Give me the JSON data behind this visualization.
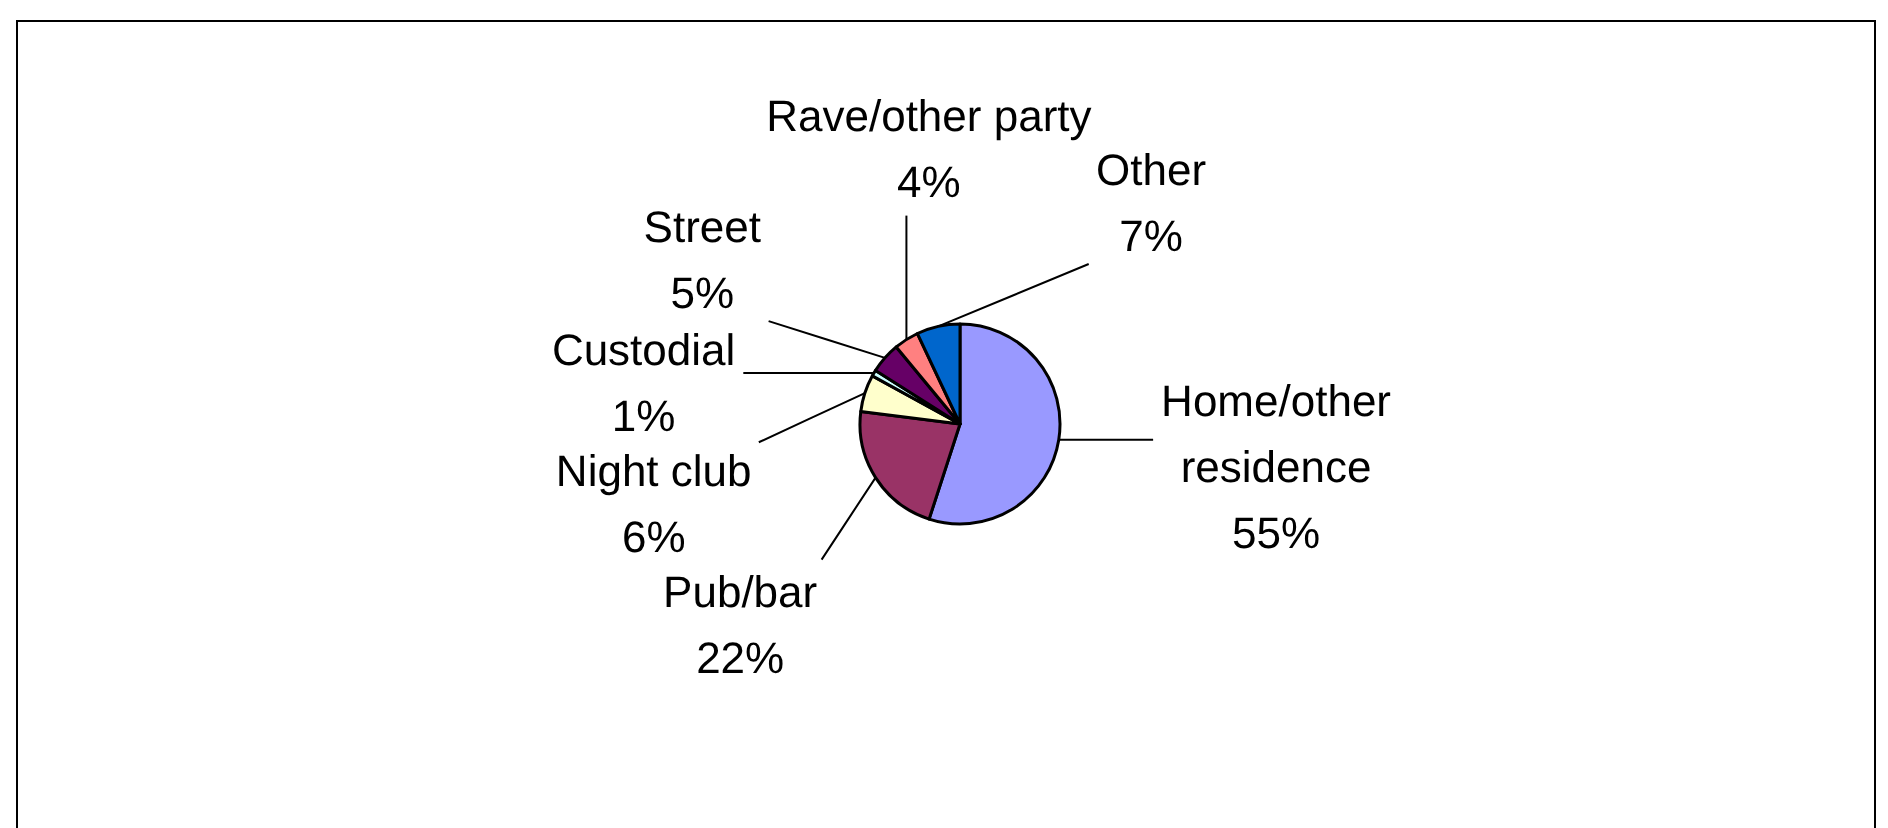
{
  "chart_data": {
    "type": "pie",
    "categories": [
      "Home/other residence",
      "Pub/bar",
      "Night club",
      "Custodial",
      "Street",
      "Rave/other party",
      "Other"
    ],
    "values": [
      55,
      22,
      6,
      1,
      5,
      4,
      7
    ],
    "value_labels": [
      "55%",
      "22%",
      "6%",
      "1%",
      "5%",
      "4%",
      "7%"
    ],
    "colors": [
      "#9999ff",
      "#993366",
      "#ffffcc",
      "#ccffff",
      "#660066",
      "#ff8080",
      "#0066cc"
    ]
  }
}
